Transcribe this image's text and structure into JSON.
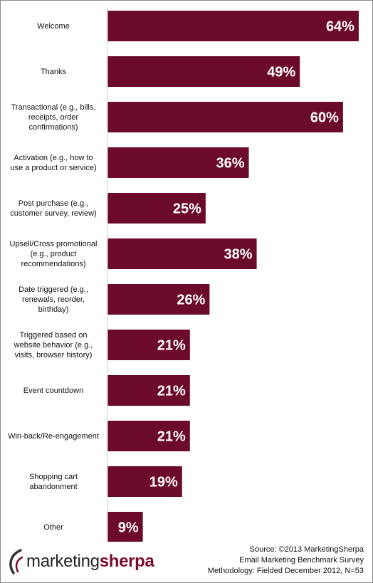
{
  "chart_data": {
    "type": "bar",
    "orientation": "horizontal",
    "categories": [
      "Welcome",
      "Thanks",
      "Transactional (e.g., bills, receipts, order confirmations)",
      "Activation (e.g., how to use a product or service)",
      "Post purchase (e.g., customer survey, review)",
      "Upsell/Cross promotional (e.g., product recommendations)",
      "Date triggered (e.g., renewals, reorder, birthday)",
      "Triggered based on website behavior (e.g., visits, browser history)",
      "Event countdown",
      "Win-back/Re-engagement",
      "Shopping cart abandonment",
      "Other"
    ],
    "category_lines": [
      [
        "Welcome"
      ],
      [
        "Thanks"
      ],
      [
        "Transactional (e.g., bills,",
        "receipts, order",
        "confirmations)"
      ],
      [
        "Activation (e.g., how to",
        "use a product or service)"
      ],
      [
        "Post purchase (e.g.,",
        "customer survey, review)"
      ],
      [
        "Upsell/Cross promotional",
        "(e.g., product",
        "recommendations)"
      ],
      [
        "Date triggered (e.g.,",
        "renewals, reorder,",
        "birthday)"
      ],
      [
        "Triggered based on",
        "website behavior (e.g.,",
        "visits, browser history)"
      ],
      [
        "Event countdown"
      ],
      [
        "Win-back/Re-engagement"
      ],
      [
        "Shopping cart",
        "abandonment"
      ],
      [
        "Other"
      ]
    ],
    "values": [
      64,
      49,
      60,
      36,
      25,
      38,
      26,
      21,
      21,
      21,
      19,
      9
    ],
    "value_labels": [
      "64%",
      "49%",
      "60%",
      "36%",
      "25%",
      "38%",
      "26%",
      "21%",
      "21%",
      "21%",
      "19%",
      "9%"
    ],
    "xlim": [
      0,
      66
    ],
    "grid": false,
    "bar_color": "#6b0a2a",
    "label_color": "#ffffff"
  },
  "footer": {
    "logo_light": "marketing",
    "logo_bold": "sherpa",
    "source_line1": "Source: ©2013 MarketingSherpa",
    "source_line2": "Email Marketing Benchmark Survey",
    "source_line3": "Methodology: Fielded December 2012, N=53"
  }
}
